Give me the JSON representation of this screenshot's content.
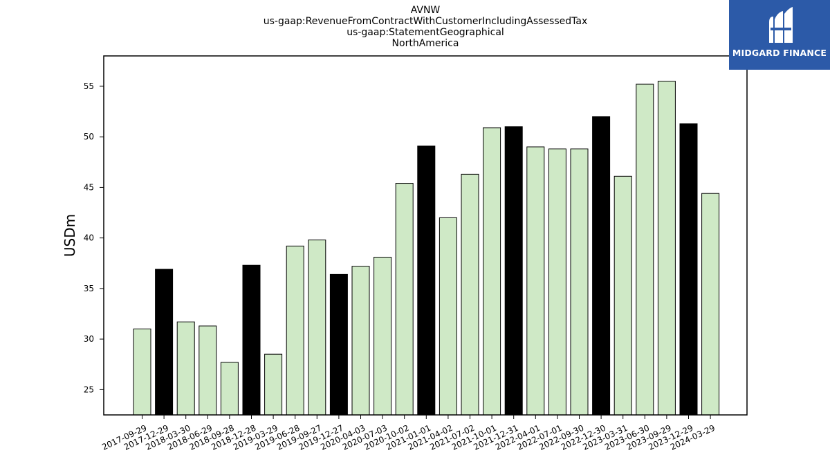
{
  "chart_data": {
    "type": "bar",
    "title_lines": [
      "AVNW",
      "us-gaap:RevenueFromContractWithCustomerIncludingAssessedTax",
      "us-gaap:StatementGeographical",
      "NorthAmerica"
    ],
    "ylabel": "USDm",
    "xlabel": "",
    "ylim": [
      22.5,
      58
    ],
    "yticks": [
      "25",
      "30",
      "35",
      "40",
      "45",
      "50",
      "55"
    ],
    "categories": [
      "2017-09-29",
      "2017-12-29",
      "2018-03-30",
      "2018-06-29",
      "2018-09-28",
      "2018-12-28",
      "2019-03-29",
      "2019-06-28",
      "2019-09-27",
      "2019-12-27",
      "2020-04-03",
      "2020-07-03",
      "2020-10-02",
      "2021-01-01",
      "2021-04-02",
      "2021-07-02",
      "2021-10-01",
      "2021-12-31",
      "2022-04-01",
      "2022-07-01",
      "2022-09-30",
      "2022-12-30",
      "2023-03-31",
      "2023-06-30",
      "2023-09-29",
      "2023-12-29",
      "2024-03-29"
    ],
    "values": [
      31.0,
      36.9,
      31.7,
      31.3,
      27.7,
      37.3,
      28.5,
      39.2,
      39.8,
      36.4,
      37.2,
      38.1,
      45.4,
      49.1,
      42.0,
      46.3,
      50.9,
      51.0,
      49.0,
      48.8,
      48.8,
      52.0,
      46.1,
      55.2,
      55.5,
      51.3,
      44.4
    ],
    "highlighted": [
      false,
      true,
      false,
      false,
      false,
      true,
      false,
      false,
      false,
      true,
      false,
      false,
      false,
      true,
      false,
      false,
      false,
      true,
      false,
      false,
      false,
      true,
      false,
      false,
      false,
      true,
      false
    ],
    "colors": {
      "normal": "#cfe9c6",
      "highlight": "#000000",
      "edge": "#000000"
    },
    "grid": false,
    "legend": "none"
  },
  "logo": {
    "text": "MIDGARD FINANCE",
    "icon": "midgard-logo-icon",
    "background": "#2c5aa8"
  }
}
